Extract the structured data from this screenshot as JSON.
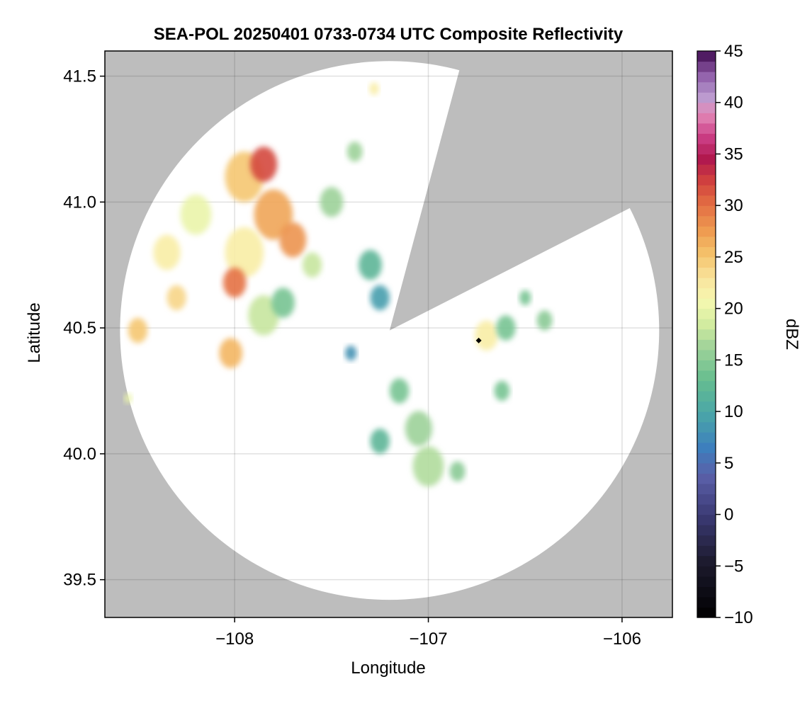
{
  "chart_data": {
    "type": "heatmap",
    "title": "SEA-POL 20250401 0733-0734 UTC Composite Reflectivity",
    "xlabel": "Longitude",
    "ylabel": "Latitude",
    "xlim": [
      -108.67,
      -105.74
    ],
    "ylim": [
      39.35,
      41.6
    ],
    "xticks": [
      -108,
      -107,
      -106
    ],
    "xtick_labels": [
      "−108",
      "−107",
      "−106"
    ],
    "yticks": [
      39.5,
      40.0,
      40.5,
      41.0,
      41.5
    ],
    "ytick_labels": [
      "39.5",
      "40.0",
      "40.5",
      "41.0",
      "41.5"
    ],
    "grid": true,
    "background_color": "#bdbdbd",
    "radar": {
      "center_lon": -107.2,
      "center_lat": 40.49,
      "max_range_deg_lat": 1.07,
      "blocked_sectors": [
        {
          "from_deg": 15,
          "to_deg": 55
        },
        {
          "from_deg": 55,
          "to_deg": 63
        }
      ],
      "site_marker": {
        "lon": -106.74,
        "lat": 40.45
      }
    },
    "colorbar": {
      "label": "dBZ",
      "min": -10,
      "max": 45,
      "ticks": [
        -10,
        -5,
        0,
        5,
        10,
        15,
        20,
        25,
        30,
        35,
        40,
        45
      ],
      "tick_labels": [
        "−10",
        "−5",
        "0",
        "5",
        "10",
        "15",
        "20",
        "25",
        "30",
        "35",
        "40",
        "45"
      ],
      "colormap": "spectral_r"
    },
    "echo_cells": [
      {
        "lon": -108.5,
        "lat": 40.49,
        "r": 0.05,
        "dbz": 25
      },
      {
        "lon": -108.35,
        "lat": 40.8,
        "r": 0.07,
        "dbz": 22
      },
      {
        "lon": -108.2,
        "lat": 40.95,
        "r": 0.08,
        "dbz": 20
      },
      {
        "lon": -108.3,
        "lat": 40.62,
        "r": 0.05,
        "dbz": 24
      },
      {
        "lon": -107.95,
        "lat": 41.1,
        "r": 0.1,
        "dbz": 25
      },
      {
        "lon": -107.85,
        "lat": 41.15,
        "r": 0.07,
        "dbz": 32
      },
      {
        "lon": -107.8,
        "lat": 40.95,
        "r": 0.1,
        "dbz": 27
      },
      {
        "lon": -107.95,
        "lat": 40.8,
        "r": 0.1,
        "dbz": 22
      },
      {
        "lon": -108.0,
        "lat": 40.68,
        "r": 0.06,
        "dbz": 30
      },
      {
        "lon": -107.7,
        "lat": 40.85,
        "r": 0.07,
        "dbz": 28
      },
      {
        "lon": -107.85,
        "lat": 40.55,
        "r": 0.08,
        "dbz": 18
      },
      {
        "lon": -108.02,
        "lat": 40.4,
        "r": 0.06,
        "dbz": 26
      },
      {
        "lon": -107.75,
        "lat": 40.6,
        "r": 0.06,
        "dbz": 14
      },
      {
        "lon": -107.6,
        "lat": 40.75,
        "r": 0.05,
        "dbz": 18
      },
      {
        "lon": -107.5,
        "lat": 41.0,
        "r": 0.06,
        "dbz": 16
      },
      {
        "lon": -107.38,
        "lat": 41.2,
        "r": 0.04,
        "dbz": 16
      },
      {
        "lon": -107.28,
        "lat": 41.45,
        "r": 0.025,
        "dbz": 22
      },
      {
        "lon": -107.3,
        "lat": 40.75,
        "r": 0.06,
        "dbz": 12
      },
      {
        "lon": -107.25,
        "lat": 40.62,
        "r": 0.05,
        "dbz": 9
      },
      {
        "lon": -107.4,
        "lat": 40.4,
        "r": 0.03,
        "dbz": 8
      },
      {
        "lon": -107.15,
        "lat": 40.25,
        "r": 0.05,
        "dbz": 14
      },
      {
        "lon": -107.05,
        "lat": 40.1,
        "r": 0.07,
        "dbz": 16
      },
      {
        "lon": -107.0,
        "lat": 39.95,
        "r": 0.08,
        "dbz": 17
      },
      {
        "lon": -107.25,
        "lat": 40.05,
        "r": 0.05,
        "dbz": 12
      },
      {
        "lon": -106.7,
        "lat": 40.47,
        "r": 0.06,
        "dbz": 22
      },
      {
        "lon": -106.6,
        "lat": 40.5,
        "r": 0.05,
        "dbz": 14
      },
      {
        "lon": -106.4,
        "lat": 40.53,
        "r": 0.04,
        "dbz": 15
      },
      {
        "lon": -106.62,
        "lat": 40.25,
        "r": 0.04,
        "dbz": 14
      },
      {
        "lon": -106.85,
        "lat": 39.93,
        "r": 0.04,
        "dbz": 15
      },
      {
        "lon": -106.5,
        "lat": 40.62,
        "r": 0.03,
        "dbz": 14
      },
      {
        "lon": -108.55,
        "lat": 40.22,
        "r": 0.02,
        "dbz": 20
      }
    ]
  }
}
